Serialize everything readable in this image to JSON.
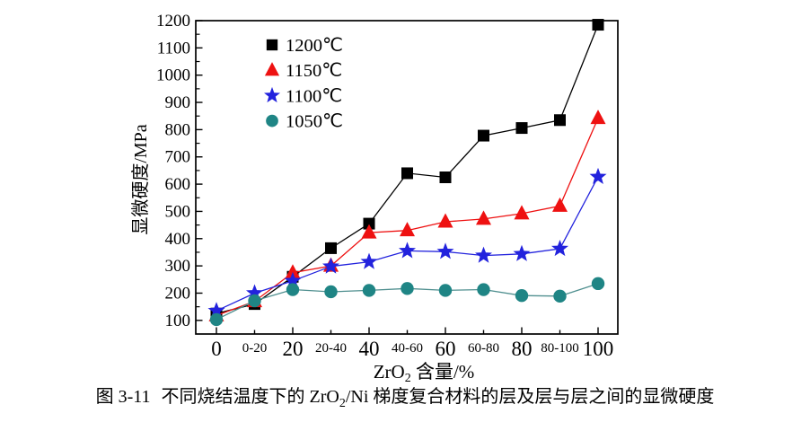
{
  "figure": {
    "caption": {
      "fig_label": "图 3-11",
      "pre": "不同烧结温度下的 ZrO",
      "sub": "2",
      "post": "/Ni 梯度复合材料的层及层与层之间的显微硬度"
    }
  },
  "chart_data": {
    "type": "line",
    "title": "",
    "xlabel_parts": {
      "pre": "ZrO",
      "sub": "2",
      "post": " 含量/%"
    },
    "ylabel": "显微硬度/MPa",
    "categories": [
      "0",
      "0-20",
      "20",
      "20-40",
      "40",
      "40-60",
      "60",
      "60-80",
      "80",
      "80-100",
      "100"
    ],
    "major_category_indices": [
      0,
      2,
      4,
      6,
      8,
      10
    ],
    "y_ticks": [
      100,
      200,
      300,
      400,
      500,
      600,
      700,
      800,
      900,
      1000,
      1100,
      1200
    ],
    "ylim": [
      50,
      1200
    ],
    "grid": false,
    "legend_position": "top-left-inside",
    "series": [
      {
        "name": "1200℃",
        "marker": "square",
        "color": "#000000",
        "line_color": "#000000",
        "values": [
          125,
          160,
          260,
          365,
          455,
          640,
          625,
          778,
          806,
          835,
          1185
        ]
      },
      {
        "name": "1150℃",
        "marker": "triangle",
        "color": "#ee1111",
        "line_color": "#ee1111",
        "values": [
          118,
          170,
          275,
          300,
          422,
          430,
          462,
          472,
          492,
          520,
          842
        ]
      },
      {
        "name": "1100℃",
        "marker": "star",
        "color": "#2222dd",
        "line_color": "#2222dd",
        "values": [
          135,
          200,
          245,
          298,
          315,
          355,
          352,
          338,
          344,
          363,
          627
        ]
      },
      {
        "name": "1050℃",
        "marker": "circle",
        "color": "#1f8585",
        "line_color": "#4f8f8f",
        "values": [
          103,
          172,
          213,
          205,
          210,
          217,
          210,
          213,
          191,
          189,
          235
        ]
      }
    ]
  }
}
